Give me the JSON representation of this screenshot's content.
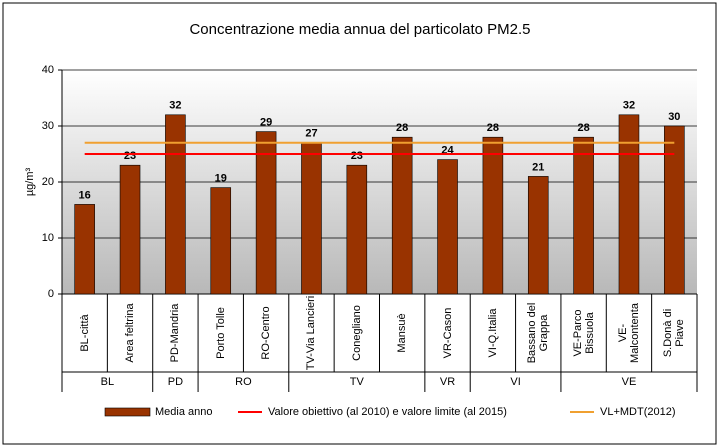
{
  "chart_data": {
    "type": "bar",
    "title": "Concentrazione media annua del particolato PM2.5",
    "ylabel": "µg/m³",
    "categories": [
      "BL-città",
      "Area feltrina",
      "PD-Mandria",
      "Porto Tolle",
      "RO-Centro",
      "TV-Via Lancieri",
      "Conegliano",
      "Mansuè",
      "VR-Cason",
      "VI-Q.Italia",
      "Bassano del Grappa",
      "VE-Parco Bissuola",
      "VE-Malcontenta",
      "S.Donà di Piave"
    ],
    "category_groups": [
      "BL",
      "BL",
      "PD",
      "RO",
      "RO",
      "TV",
      "TV",
      "TV",
      "VR",
      "VI",
      "VI",
      "VE",
      "VE",
      "VE"
    ],
    "series": [
      {
        "name": "Media anno",
        "color": "#993300",
        "values": [
          16,
          23,
          32,
          19,
          29,
          27,
          23,
          28,
          24,
          28,
          21,
          28,
          32,
          30
        ]
      }
    ],
    "reference_lines": [
      {
        "name": "Valore obiettivo (al 2010) e valore limite (al 2015)",
        "color": "#ff0000",
        "value": 25
      },
      {
        "name": "VL+MDT(2012)",
        "color": "#f0a030",
        "value": 27
      }
    ],
    "ylim": [
      0,
      40
    ],
    "yticks": [
      0,
      10,
      20,
      30,
      40
    ],
    "grid": true
  }
}
